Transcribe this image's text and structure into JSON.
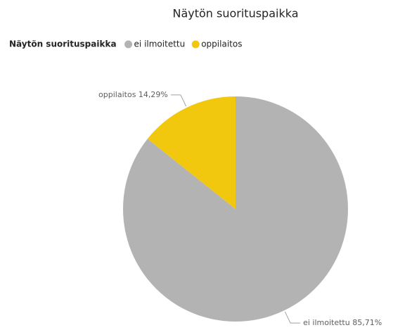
{
  "chart_data": {
    "type": "pie",
    "title": "Näytön suorituspaikka",
    "legend_title": "Näytön suorituspaikka",
    "categories": [
      "ei ilmoitettu",
      "oppilaitos"
    ],
    "values": [
      85.71,
      14.29
    ],
    "value_labels": [
      "ei ilmoitettu 85,71%",
      "oppilaitos 14,29%"
    ],
    "colors": [
      "#b3b3b3",
      "#f2c80f"
    ],
    "legend": "top-left"
  }
}
